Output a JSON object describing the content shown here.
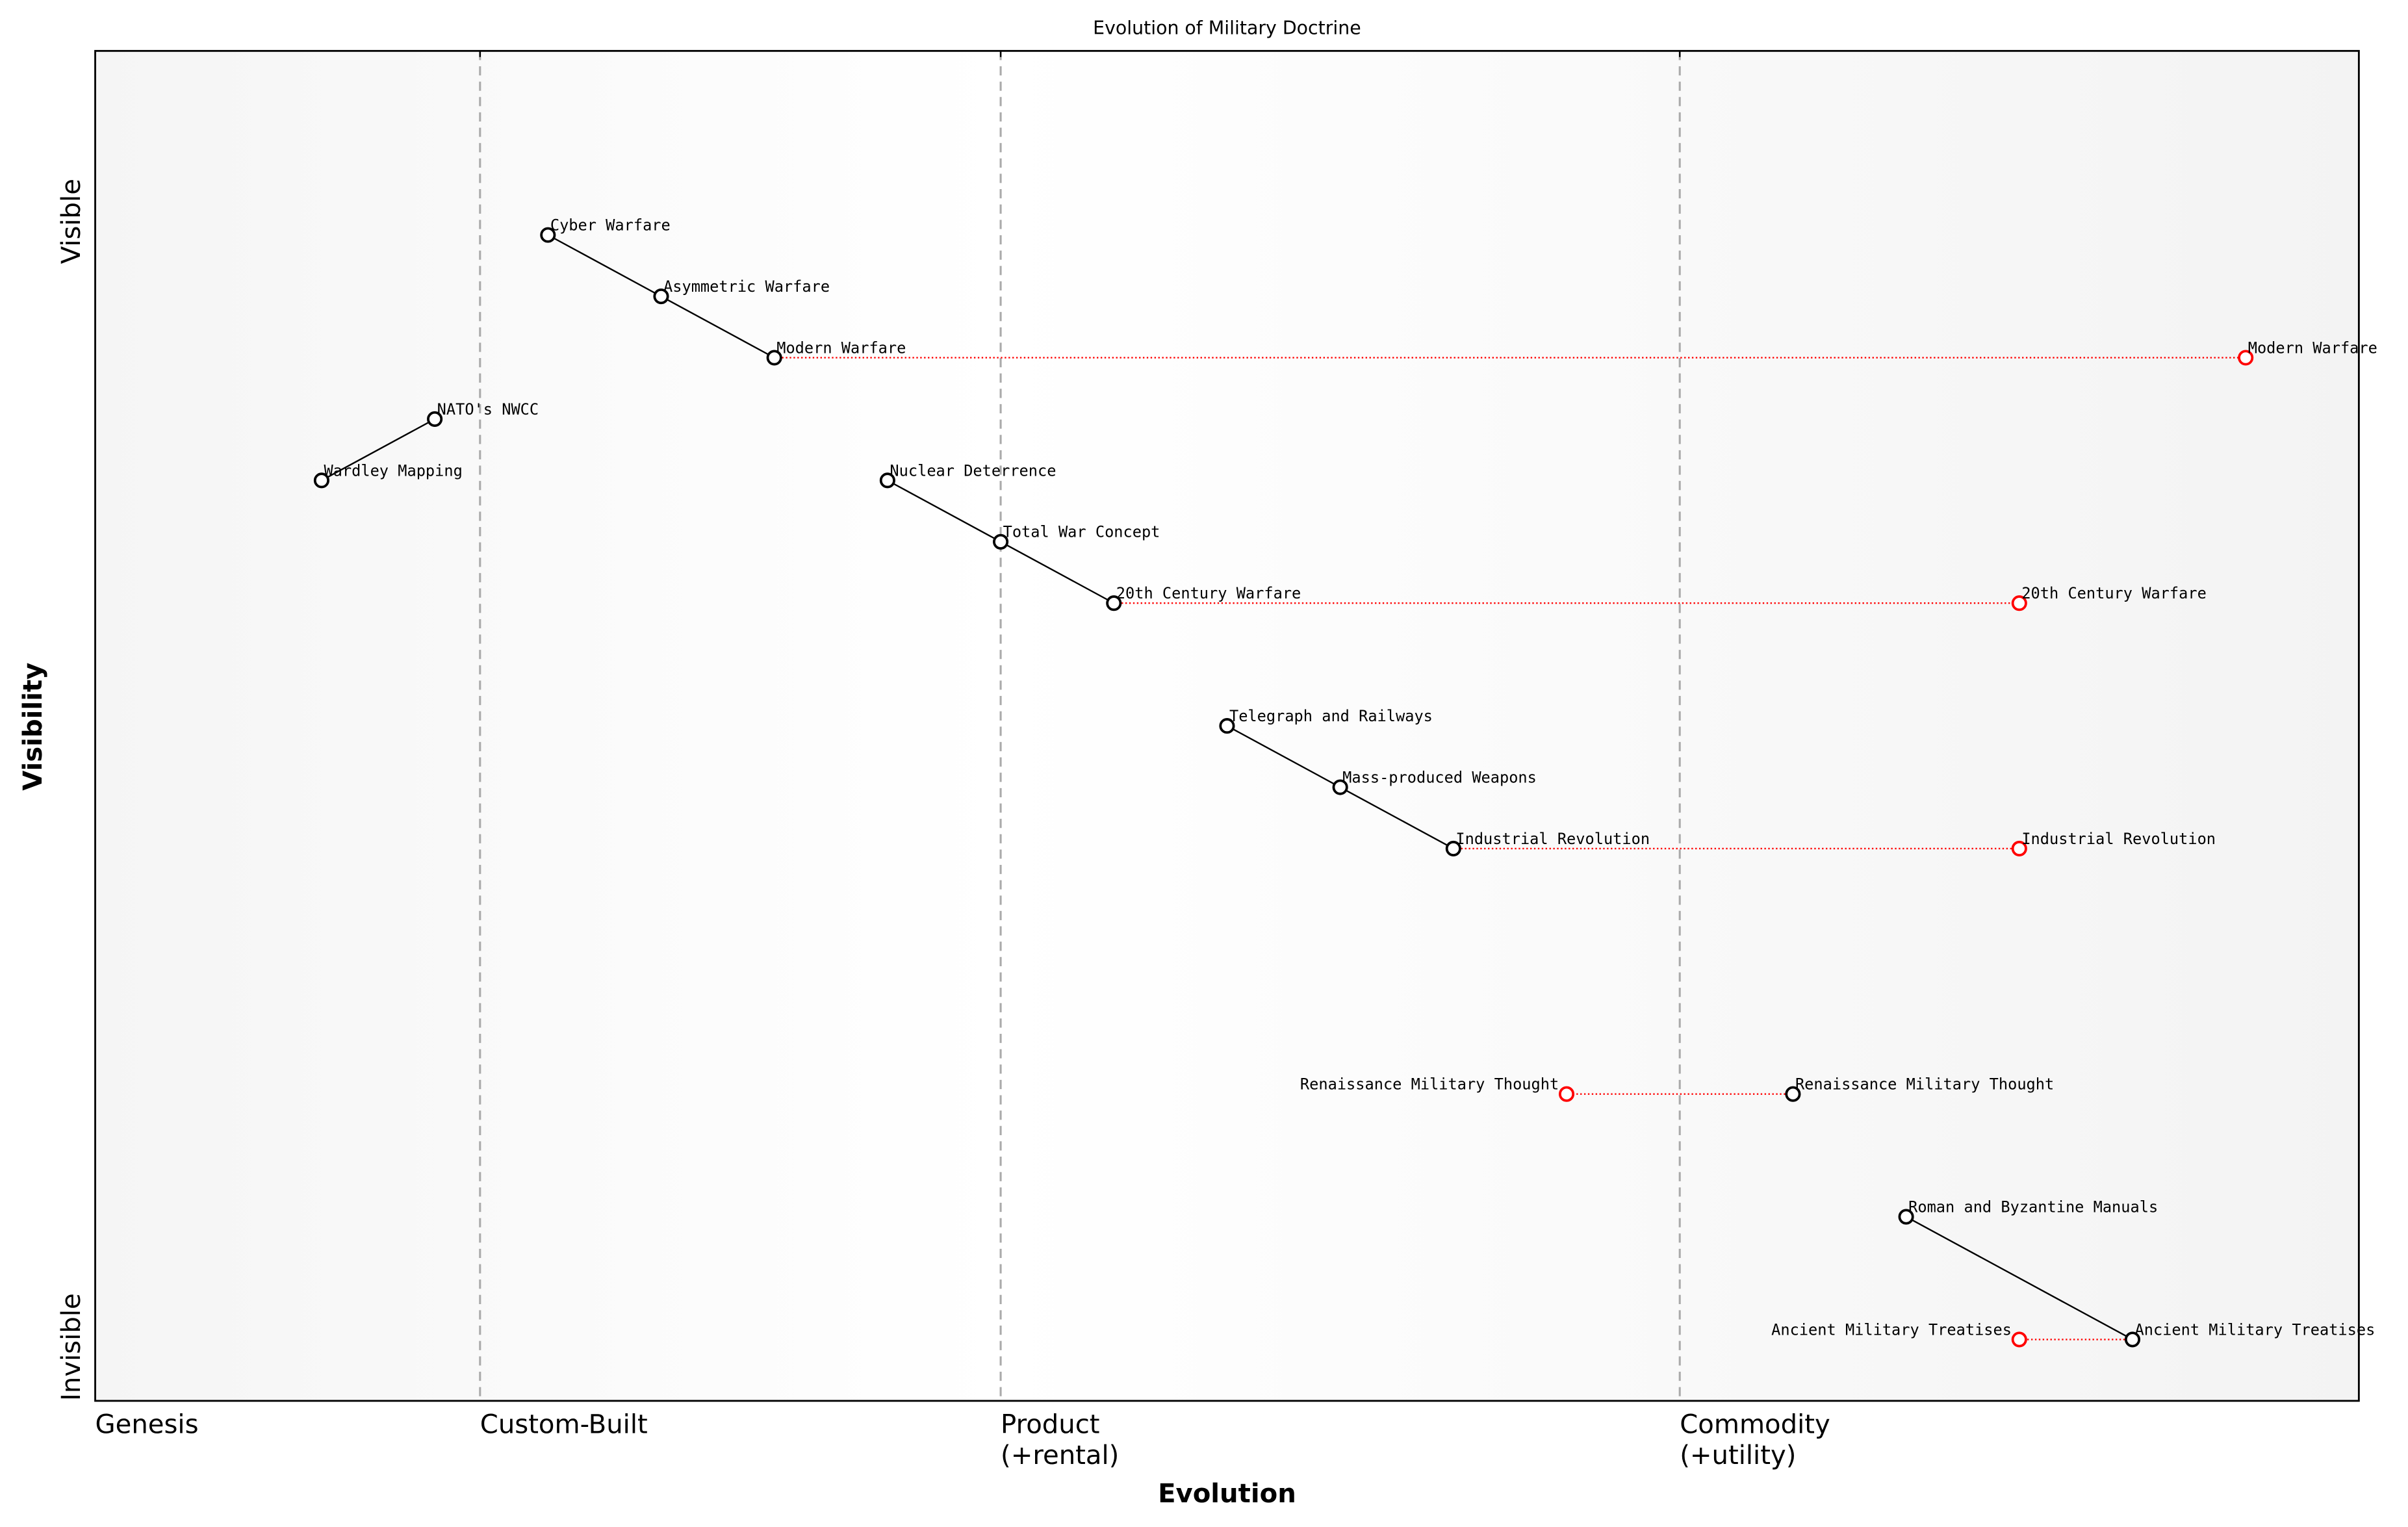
{
  "chart_data": {
    "type": "scatter",
    "title": "Evolution of Military Doctrine",
    "xlabel": "Evolution",
    "ylabel": "Visibility",
    "xlim": [
      0,
      1
    ],
    "ylim": [
      0,
      1.1
    ],
    "y_tick_labels": {
      "top": "Visible",
      "bottom": "Invisible"
    },
    "x_stages": [
      {
        "label": "Genesis",
        "x": 0
      },
      {
        "label": "Custom-Built",
        "x": 0.17
      },
      {
        "label": "Product\n(+rental)",
        "x": 0.4
      },
      {
        "label": "Commodity\n(+utility)",
        "x": 0.7
      }
    ],
    "stage_dividers": [
      0.17,
      0.4,
      0.7
    ],
    "components": [
      {
        "name": "Cyber Warfare",
        "x": 0.2,
        "y": 0.95
      },
      {
        "name": "Asymmetric Warfare",
        "x": 0.25,
        "y": 0.9
      },
      {
        "name": "Modern Warfare",
        "x": 0.3,
        "y": 0.85
      },
      {
        "name": "NATO's NWCC",
        "x": 0.15,
        "y": 0.8
      },
      {
        "name": "Wardley Mapping",
        "x": 0.1,
        "y": 0.75
      },
      {
        "name": "Nuclear Deterrence",
        "x": 0.35,
        "y": 0.75
      },
      {
        "name": "Total War Concept",
        "x": 0.4,
        "y": 0.7
      },
      {
        "name": "20th Century Warfare",
        "x": 0.45,
        "y": 0.65
      },
      {
        "name": "Telegraph and Railways",
        "x": 0.5,
        "y": 0.55
      },
      {
        "name": "Mass-produced Weapons",
        "x": 0.55,
        "y": 0.5
      },
      {
        "name": "Industrial Revolution",
        "x": 0.6,
        "y": 0.45
      },
      {
        "name": "Renaissance Military Thought",
        "x": 0.75,
        "y": 0.25
      },
      {
        "name": "Roman and Byzantine Manuals",
        "x": 0.8,
        "y": 0.15
      },
      {
        "name": "Ancient Military Treatises",
        "x": 0.9,
        "y": 0.05
      }
    ],
    "links": [
      [
        "Cyber Warfare",
        "Asymmetric Warfare"
      ],
      [
        "Asymmetric Warfare",
        "Modern Warfare"
      ],
      [
        "Wardley Mapping",
        "NATO's NWCC"
      ],
      [
        "Nuclear Deterrence",
        "Total War Concept"
      ],
      [
        "Total War Concept",
        "20th Century Warfare"
      ],
      [
        "Telegraph and Railways",
        "Mass-produced Weapons"
      ],
      [
        "Mass-produced Weapons",
        "Industrial Revolution"
      ],
      [
        "Roman and Byzantine Manuals",
        "Ancient Military Treatises"
      ]
    ],
    "evolutions": [
      {
        "name": "Modern Warfare",
        "to_x": 0.95
      },
      {
        "name": "20th Century Warfare",
        "to_x": 0.85
      },
      {
        "name": "Industrial Revolution",
        "to_x": 0.85
      },
      {
        "name": "Renaissance Military Thought",
        "to_x": 0.65
      },
      {
        "name": "Ancient Military Treatises",
        "to_x": 0.85
      }
    ],
    "colors": {
      "component": "#000000",
      "evolved": "#ff0000",
      "divider": "#aaaaaa",
      "background_edge": "#f5f5f5",
      "background_center": "#ffffff"
    }
  }
}
